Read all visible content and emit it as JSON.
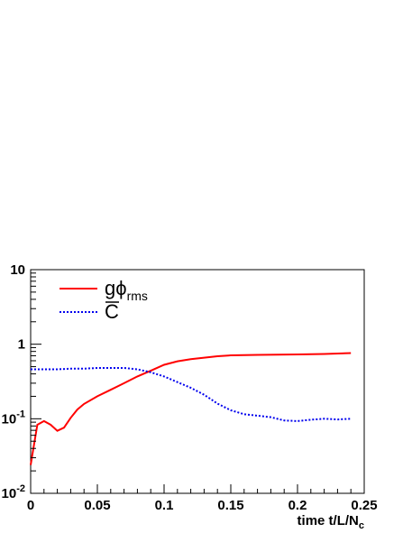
{
  "chart_data": {
    "type": "line",
    "title": "",
    "xlabel": "time t/L/N",
    "xlabel_sub": "c",
    "ylabel": "",
    "xlim": [
      0,
      0.25
    ],
    "ylim": [
      0.01,
      10
    ],
    "y_scale": "log",
    "grid": false,
    "legend_position": "top-left",
    "x_ticks": [
      {
        "value": 0,
        "label": "0"
      },
      {
        "value": 0.05,
        "label": "0.05"
      },
      {
        "value": 0.1,
        "label": "0.1"
      },
      {
        "value": 0.15,
        "label": "0.15"
      },
      {
        "value": 0.2,
        "label": "0.2"
      },
      {
        "value": 0.25,
        "label": "0.25"
      }
    ],
    "y_ticks": [
      {
        "value": 0.01,
        "base": "10",
        "exp": "-2"
      },
      {
        "value": 0.1,
        "base": "10",
        "exp": "-1"
      },
      {
        "value": 1,
        "base": "1",
        "exp": ""
      },
      {
        "value": 10,
        "base": "10",
        "exp": ""
      }
    ],
    "series": [
      {
        "name": "gϕ",
        "name_sub": "rms",
        "color": "#ff0000",
        "style": "solid",
        "x": [
          0,
          0.005,
          0.01,
          0.015,
          0.02,
          0.025,
          0.03,
          0.035,
          0.04,
          0.05,
          0.06,
          0.07,
          0.08,
          0.09,
          0.1,
          0.11,
          0.12,
          0.13,
          0.14,
          0.15,
          0.17,
          0.2,
          0.22,
          0.24
        ],
        "y": [
          0.024,
          0.083,
          0.093,
          0.083,
          0.069,
          0.076,
          0.103,
          0.133,
          0.158,
          0.2,
          0.245,
          0.3,
          0.37,
          0.44,
          0.53,
          0.59,
          0.63,
          0.66,
          0.69,
          0.71,
          0.72,
          0.73,
          0.74,
          0.76
        ]
      },
      {
        "name": "C",
        "name_sub": "",
        "color": "#0000ee",
        "style": "dotted",
        "x": [
          0,
          0.01,
          0.02,
          0.03,
          0.04,
          0.05,
          0.06,
          0.07,
          0.08,
          0.09,
          0.1,
          0.11,
          0.12,
          0.13,
          0.14,
          0.15,
          0.16,
          0.17,
          0.18,
          0.19,
          0.2,
          0.21,
          0.22,
          0.23,
          0.24
        ],
        "y": [
          0.46,
          0.46,
          0.46,
          0.47,
          0.47,
          0.48,
          0.48,
          0.48,
          0.46,
          0.42,
          0.37,
          0.31,
          0.26,
          0.21,
          0.16,
          0.13,
          0.115,
          0.11,
          0.105,
          0.095,
          0.093,
          0.097,
          0.1,
          0.098,
          0.1
        ]
      }
    ]
  }
}
